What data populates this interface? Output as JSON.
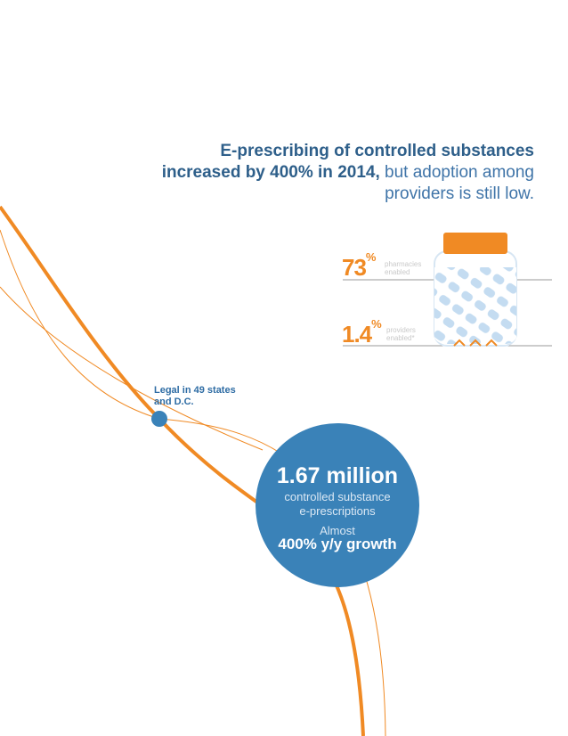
{
  "headline": {
    "bold_part": "E-prescribing of controlled substances increased by 400% in 2014,",
    "light_part": "but adoption among providers is still low."
  },
  "stats": {
    "pharmacies": {
      "value": "73",
      "symbol": "%",
      "label_line1": "pharmacies",
      "label_line2": "enabled"
    },
    "providers": {
      "value": "1.4",
      "symbol": "%",
      "label_line1": "providers",
      "label_line2": "enabled*"
    }
  },
  "legal_note": {
    "line1": "Legal in 49 states",
    "line2": "and D.C."
  },
  "circle": {
    "big_number": "1.67 million",
    "line1": "controlled substance",
    "line2": "e-prescriptions",
    "almost": "Almost",
    "growth": "400% y/y growth"
  },
  "colors": {
    "orange": "#f08a24",
    "blue": "#3a82b8",
    "dark_blue": "#2e5f8a",
    "jar_pill": "#c4dcf1"
  },
  "jar": {
    "pharmacy_fill_fraction": 0.73,
    "provider_fill_fraction": 0.014
  }
}
